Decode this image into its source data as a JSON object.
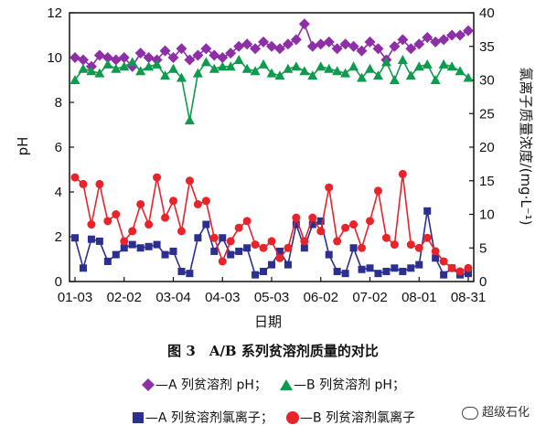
{
  "chart_data": {
    "type": "line",
    "x": [
      "01-03",
      "01-08",
      "01-13",
      "01-18",
      "01-23",
      "01-28",
      "02-02",
      "02-07",
      "02-12",
      "02-17",
      "02-22",
      "02-27",
      "03-04",
      "03-09",
      "03-14",
      "03-19",
      "03-24",
      "03-29",
      "04-03",
      "04-08",
      "04-13",
      "04-18",
      "04-23",
      "04-28",
      "05-03",
      "05-08",
      "05-13",
      "05-18",
      "05-23",
      "05-28",
      "06-02",
      "06-07",
      "06-12",
      "06-17",
      "06-22",
      "06-27",
      "07-02",
      "07-07",
      "07-12",
      "07-17",
      "07-22",
      "07-27",
      "08-01",
      "08-06",
      "08-11",
      "08-16",
      "08-21",
      "08-26",
      "08-31"
    ],
    "xticks": [
      "01-03",
      "02-02",
      "03-04",
      "04-03",
      "05-03",
      "06-02",
      "07-02",
      "08-01",
      "08-31"
    ],
    "xlabel": "日期",
    "y_left": {
      "label": "pH",
      "lim": [
        0,
        12
      ],
      "ticks": [
        0,
        2,
        4,
        6,
        8,
        10,
        12
      ]
    },
    "y_right": {
      "label": "氯离子质量浓度/(mg·L⁻¹)",
      "lim": [
        0,
        40
      ],
      "ticks": [
        0,
        5,
        10,
        15,
        20,
        25,
        30,
        35,
        40
      ]
    },
    "series": [
      {
        "name": "A 列贫溶剂 pH",
        "axis": "left",
        "marker": "diamond",
        "color": "#8E2FA8",
        "values": [
          10.0,
          9.9,
          9.6,
          10.1,
          10.0,
          9.9,
          10.0,
          9.6,
          10.2,
          10.0,
          9.9,
          10.3,
          10.0,
          10.4,
          9.9,
          10.1,
          10.4,
          10.1,
          10.0,
          10.2,
          10.5,
          10.6,
          10.4,
          10.7,
          10.5,
          10.4,
          10.6,
          10.8,
          11.5,
          10.5,
          10.6,
          10.7,
          10.4,
          10.6,
          10.5,
          10.3,
          10.7,
          10.4,
          9.9,
          10.5,
          10.8,
          10.4,
          10.6,
          10.9,
          10.7,
          10.8,
          11.0,
          11.0,
          11.2
        ]
      },
      {
        "name": "B 列贫溶剂 pH",
        "axis": "left",
        "marker": "triangle",
        "color": "#0E9B4E",
        "values": [
          9.0,
          9.5,
          9.4,
          9.3,
          9.7,
          9.5,
          9.6,
          9.8,
          9.4,
          9.6,
          9.7,
          9.2,
          9.5,
          9.1,
          7.2,
          9.3,
          9.8,
          9.5,
          9.6,
          9.6,
          9.9,
          9.5,
          9.4,
          9.7,
          9.3,
          9.2,
          9.5,
          9.6,
          9.4,
          9.2,
          9.6,
          9.5,
          9.4,
          9.3,
          9.6,
          9.1,
          9.5,
          9.2,
          9.8,
          9.0,
          9.9,
          9.2,
          9.6,
          9.7,
          9.0,
          9.7,
          9.6,
          9.4,
          9.1
        ]
      },
      {
        "name": "A 列贫溶剂氯离子",
        "axis": "right",
        "marker": "square",
        "color": "#2B2F8F",
        "values": [
          6.5,
          2.0,
          6.3,
          6.0,
          3.0,
          4.0,
          5.0,
          5.5,
          5.0,
          5.2,
          5.5,
          4.0,
          4.5,
          1.5,
          1.2,
          6.5,
          8.5,
          4.5,
          6.5,
          4.0,
          4.5,
          5.0,
          1.0,
          1.5,
          2.5,
          4.5,
          2.5,
          8.5,
          5.0,
          8.5,
          9.0,
          4.0,
          1.5,
          1.2,
          5.0,
          1.8,
          2.0,
          1.2,
          1.5,
          2.0,
          1.5,
          2.0,
          2.5,
          10.5,
          3.5,
          1.0,
          2.0,
          1.0,
          1.2
        ]
      },
      {
        "name": "B 列贫溶剂氯离子",
        "axis": "right",
        "marker": "circle",
        "color": "#E8232A",
        "values": [
          15.5,
          14.5,
          8.5,
          14.5,
          9.0,
          10.0,
          6.0,
          7.5,
          11.5,
          8.5,
          15.5,
          9.5,
          12.0,
          7.5,
          15.0,
          11.5,
          12.0,
          6.5,
          3.0,
          6.0,
          8.0,
          9.0,
          5.5,
          5.0,
          6.0,
          3.5,
          5.0,
          9.5,
          6.0,
          9.5,
          7.5,
          14.0,
          6.0,
          8.0,
          8.5,
          5.0,
          9.0,
          13.5,
          6.5,
          5.5,
          16.0,
          5.5,
          5.0,
          6.5,
          4.5,
          3.0,
          2.0,
          1.5,
          2.0
        ]
      }
    ]
  },
  "caption": "图 3　A/B 系列贫溶剂质量的对比",
  "legend": {
    "a_ph": "—A 列贫溶剂 pH；",
    "b_ph": "—B 列贫溶剂 pH；",
    "a_cl": "—A 列贫溶剂氯离子；",
    "b_cl": "—B 列贫溶剂氯离子"
  },
  "watermark": "超级石化"
}
